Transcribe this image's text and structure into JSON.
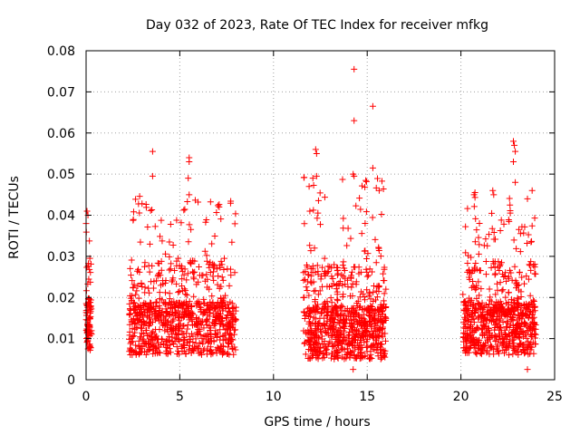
{
  "chart_data": {
    "type": "scatter",
    "title": "Day 032 of 2023, Rate Of TEC Index for receiver mfkg",
    "xlabel": "GPS time / hours",
    "ylabel": "ROTI / TECUs",
    "xlim": [
      0,
      25
    ],
    "ylim": [
      0,
      0.08
    ],
    "grid": true,
    "marker": "+",
    "series_color": "#ff0000",
    "x_ticks": [
      {
        "value": 0,
        "label": "0"
      },
      {
        "value": 5,
        "label": "5"
      },
      {
        "value": 10,
        "label": "10"
      },
      {
        "value": 15,
        "label": "15"
      },
      {
        "value": 20,
        "label": "20"
      },
      {
        "value": 25,
        "label": "25"
      }
    ],
    "y_ticks": [
      {
        "value": 0,
        "label": "0"
      },
      {
        "value": 0.01,
        "label": "0.01"
      },
      {
        "value": 0.02,
        "label": "0.02"
      },
      {
        "value": 0.03,
        "label": "0.03"
      },
      {
        "value": 0.04,
        "label": "0.04"
      },
      {
        "value": 0.05,
        "label": "0.05"
      },
      {
        "value": 0.06,
        "label": "0.06"
      },
      {
        "value": 0.07,
        "label": "0.07"
      },
      {
        "value": 0.08,
        "label": "0.08"
      }
    ],
    "segments": [
      {
        "start": 0.0,
        "end": 0.3,
        "base_min": 0.004,
        "base_max": 0.03,
        "count": 90
      },
      {
        "start": 2.3,
        "end": 8.0,
        "base_min": 0.003,
        "base_max": 0.035,
        "count": 900
      },
      {
        "start": 11.6,
        "end": 16.0,
        "base_min": 0.002,
        "base_max": 0.04,
        "count": 800
      },
      {
        "start": 20.1,
        "end": 24.0,
        "base_min": 0.003,
        "base_max": 0.035,
        "count": 700
      }
    ],
    "notable_points": [
      {
        "x": 0.05,
        "y": 0.041
      },
      {
        "x": 0.1,
        "y": 0.04
      },
      {
        "x": 0.0,
        "y": 0.038
      },
      {
        "x": 3.55,
        "y": 0.0555
      },
      {
        "x": 3.55,
        "y": 0.0495
      },
      {
        "x": 5.5,
        "y": 0.054
      },
      {
        "x": 5.5,
        "y": 0.053
      },
      {
        "x": 5.45,
        "y": 0.049
      },
      {
        "x": 5.5,
        "y": 0.045
      },
      {
        "x": 7.1,
        "y": 0.042
      },
      {
        "x": 12.25,
        "y": 0.056
      },
      {
        "x": 12.3,
        "y": 0.055
      },
      {
        "x": 12.3,
        "y": 0.0495
      },
      {
        "x": 12.1,
        "y": 0.049
      },
      {
        "x": 14.3,
        "y": 0.0755
      },
      {
        "x": 14.3,
        "y": 0.063
      },
      {
        "x": 14.25,
        "y": 0.05
      },
      {
        "x": 14.3,
        "y": 0.0495
      },
      {
        "x": 15.3,
        "y": 0.0665
      },
      {
        "x": 15.3,
        "y": 0.0515
      },
      {
        "x": 14.25,
        "y": 0.0025
      },
      {
        "x": 22.8,
        "y": 0.058
      },
      {
        "x": 22.85,
        "y": 0.057
      },
      {
        "x": 22.9,
        "y": 0.0555
      },
      {
        "x": 22.8,
        "y": 0.053
      },
      {
        "x": 22.9,
        "y": 0.048
      },
      {
        "x": 20.7,
        "y": 0.045
      },
      {
        "x": 20.75,
        "y": 0.0455
      },
      {
        "x": 21.7,
        "y": 0.046
      },
      {
        "x": 21.75,
        "y": 0.045
      },
      {
        "x": 23.8,
        "y": 0.046
      },
      {
        "x": 23.55,
        "y": 0.044
      },
      {
        "x": 23.55,
        "y": 0.0025
      },
      {
        "x": 11.9,
        "y": 0.047
      }
    ]
  }
}
